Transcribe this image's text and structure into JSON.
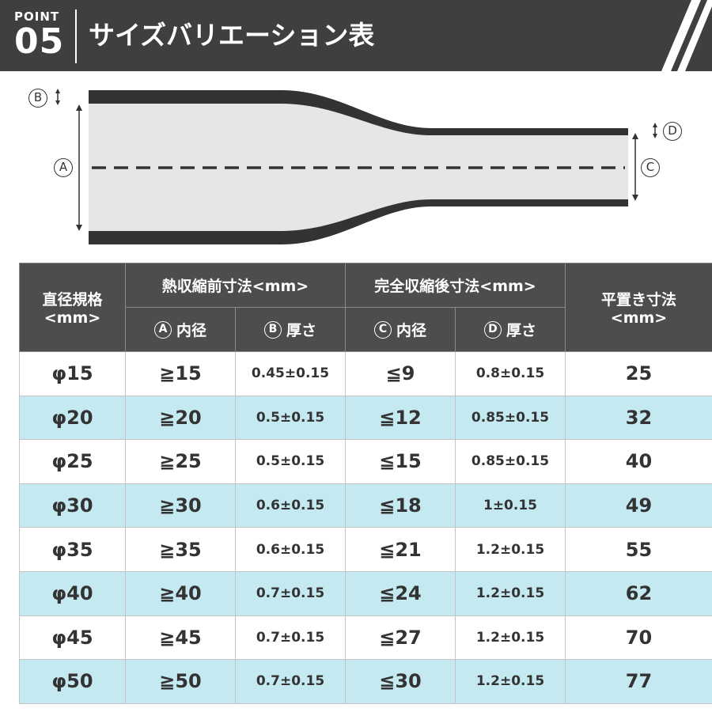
{
  "header": {
    "point_label": "POINT",
    "point_number": "05",
    "title": "サイズバリエーション表"
  },
  "diagram": {
    "label_a": "A",
    "label_b": "B",
    "label_c": "C",
    "label_d": "D"
  },
  "table": {
    "col_spec_line1": "直径規格",
    "col_spec_line2": "<mm>",
    "group_before": "熱収縮前寸法<mm>",
    "group_after": "完全収縮後寸法<mm>",
    "col_flat_line1": "平置き寸法",
    "col_flat_line2": "<mm>",
    "sub_a_circle": "A",
    "sub_a_text": "内径",
    "sub_b_circle": "B",
    "sub_b_text": "厚さ",
    "sub_c_circle": "C",
    "sub_c_text": "内径",
    "sub_d_circle": "D",
    "sub_d_text": "厚さ",
    "rows": [
      {
        "spec": "φ15",
        "inner_before": "≧15",
        "thick_before": "0.45±0.15",
        "inner_after": "≦9",
        "thick_after": "0.8±0.15",
        "flat": "25"
      },
      {
        "spec": "φ20",
        "inner_before": "≧20",
        "thick_before": "0.5±0.15",
        "inner_after": "≦12",
        "thick_after": "0.85±0.15",
        "flat": "32"
      },
      {
        "spec": "φ25",
        "inner_before": "≧25",
        "thick_before": "0.5±0.15",
        "inner_after": "≦15",
        "thick_after": "0.85±0.15",
        "flat": "40"
      },
      {
        "spec": "φ30",
        "inner_before": "≧30",
        "thick_before": "0.6±0.15",
        "inner_after": "≦18",
        "thick_after": "1±0.15",
        "flat": "49"
      },
      {
        "spec": "φ35",
        "inner_before": "≧35",
        "thick_before": "0.6±0.15",
        "inner_after": "≦21",
        "thick_after": "1.2±0.15",
        "flat": "55"
      },
      {
        "spec": "φ40",
        "inner_before": "≧40",
        "thick_before": "0.7±0.15",
        "inner_after": "≦24",
        "thick_after": "1.2±0.15",
        "flat": "62"
      },
      {
        "spec": "φ45",
        "inner_before": "≧45",
        "thick_before": "0.7±0.15",
        "inner_after": "≦27",
        "thick_after": "1.2±0.15",
        "flat": "70"
      },
      {
        "spec": "φ50",
        "inner_before": "≧50",
        "thick_before": "0.7±0.15",
        "inner_after": "≦30",
        "thick_after": "1.2±0.15",
        "flat": "77"
      }
    ]
  },
  "colors": {
    "header_bg": "#3f3f3f",
    "table_header_bg": "#4d4d4d",
    "alt_row_bg": "#c4e9f1",
    "tube_fill": "#e6e6e6",
    "tube_wall": "#333333"
  }
}
